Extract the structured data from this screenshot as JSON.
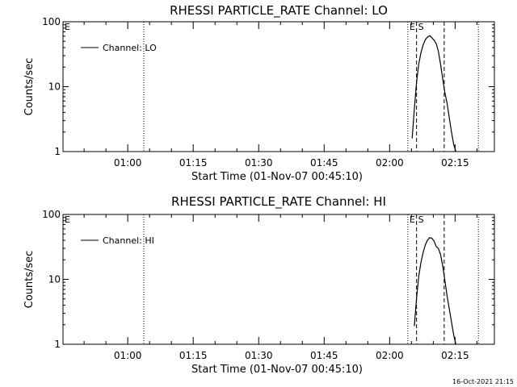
{
  "chart_data": [
    {
      "type": "line",
      "title": "RHESSI PARTICLE_RATE Channel: LO",
      "xlabel": "Start Time (01-Nov-07 00:45:10)",
      "ylabel": "Counts/sec",
      "yscale": "log",
      "xlim": [
        "00:45:10",
        "02:24:00"
      ],
      "ylim": [
        1,
        100
      ],
      "x_ticks": [
        "01:00",
        "01:15",
        "01:30",
        "01:45",
        "02:00",
        "02:15"
      ],
      "y_ticks": [
        "1",
        "10",
        "100"
      ],
      "legend": {
        "label": "Channel: LO",
        "placement": "top-left"
      },
      "corner_marker": "E",
      "vertical_markers": [
        {
          "time": "01:03:40",
          "style": "dotted",
          "label": ""
        },
        {
          "time": "02:04:10",
          "style": "dotted",
          "label": "E"
        },
        {
          "time": "02:06:10",
          "style": "dashed",
          "label": "S"
        },
        {
          "time": "02:12:30",
          "style": "dashed",
          "label": ""
        },
        {
          "time": "02:20:20",
          "style": "dotted",
          "label": ""
        }
      ],
      "series": [
        {
          "name": "Channel: LO",
          "x": [
            "02:05:10",
            "02:05:40",
            "02:06:10",
            "02:06:40",
            "02:07:10",
            "02:07:40",
            "02:08:10",
            "02:08:40",
            "02:09:10",
            "02:09:40",
            "02:10:10",
            "02:10:40",
            "02:11:10",
            "02:11:40",
            "02:12:10",
            "02:12:40",
            "02:13:10",
            "02:13:40",
            "02:14:10",
            "02:14:40",
            "02:15:10"
          ],
          "y": [
            1.6,
            4.5,
            11.5,
            22,
            33,
            44,
            53,
            58,
            61,
            57,
            52,
            46,
            35,
            22,
            13,
            8,
            5.5,
            3.3,
            2,
            1.3,
            1
          ]
        }
      ]
    },
    {
      "type": "line",
      "title": "RHESSI PARTICLE_RATE Channel: HI",
      "xlabel": "Start Time (01-Nov-07 00:45:10)",
      "ylabel": "Counts/sec",
      "yscale": "log",
      "xlim": [
        "00:45:10",
        "02:24:00"
      ],
      "ylim": [
        1,
        100
      ],
      "x_ticks": [
        "01:00",
        "01:15",
        "01:30",
        "01:45",
        "02:00",
        "02:15"
      ],
      "y_ticks": [
        "1",
        "10",
        "100"
      ],
      "legend": {
        "label": "Channel: HI",
        "placement": "top-left"
      },
      "corner_marker": "E",
      "vertical_markers": [
        {
          "time": "01:03:40",
          "style": "dotted",
          "label": ""
        },
        {
          "time": "02:04:10",
          "style": "dotted",
          "label": "E"
        },
        {
          "time": "02:06:10",
          "style": "dashed",
          "label": "S"
        },
        {
          "time": "02:12:30",
          "style": "dashed",
          "label": ""
        },
        {
          "time": "02:20:20",
          "style": "dotted",
          "label": ""
        }
      ],
      "series": [
        {
          "name": "Channel: HI",
          "x": [
            "02:05:40",
            "02:06:10",
            "02:06:40",
            "02:07:10",
            "02:07:40",
            "02:08:10",
            "02:08:40",
            "02:09:10",
            "02:09:40",
            "02:10:10",
            "02:10:40",
            "02:11:10",
            "02:11:40",
            "02:12:10",
            "02:12:40",
            "02:13:10",
            "02:13:40",
            "02:14:10",
            "02:14:40",
            "02:15:10"
          ],
          "y": [
            1.9,
            5,
            11,
            18,
            26,
            34,
            40,
            44,
            43,
            39,
            32,
            30,
            24,
            16,
            9.5,
            5.5,
            3.5,
            2.2,
            1.4,
            1
          ]
        }
      ]
    }
  ],
  "timestamp": "16-Oct-2021 21:15"
}
